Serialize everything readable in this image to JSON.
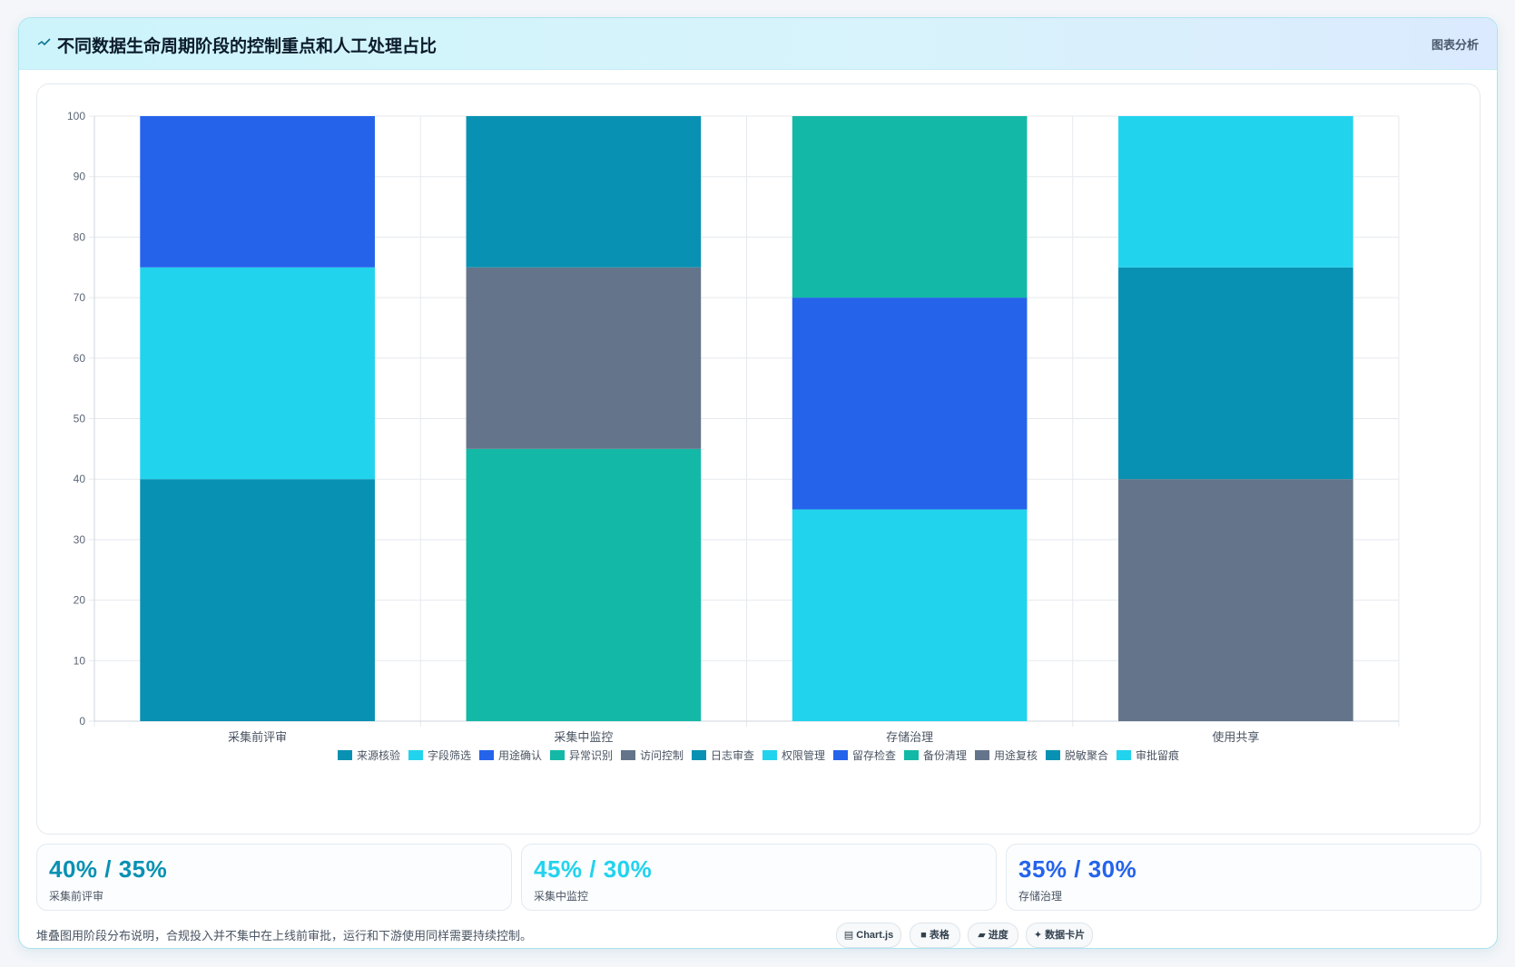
{
  "header": {
    "title": "不同数据生命周期阶段的控制重点和人工处理占比",
    "tag": "图表分析"
  },
  "chart_data": {
    "type": "bar",
    "stacked": true,
    "categories": [
      "采集前评审",
      "采集中监控",
      "存储治理",
      "使用共享"
    ],
    "ylim": [
      0,
      100
    ],
    "yticks": [
      0,
      10,
      20,
      30,
      40,
      50,
      60,
      70,
      80,
      90,
      100
    ],
    "grid": true,
    "legend_position": "bottom",
    "series": [
      {
        "name": "来源核验",
        "color": "#0891b2",
        "values": [
          40,
          0,
          0,
          0
        ]
      },
      {
        "name": "字段筛选",
        "color": "#22d3ee",
        "values": [
          35,
          0,
          0,
          0
        ]
      },
      {
        "name": "用途确认",
        "color": "#2563eb",
        "values": [
          25,
          0,
          0,
          0
        ]
      },
      {
        "name": "异常识别",
        "color": "#14b8a6",
        "values": [
          0,
          45,
          0,
          0
        ]
      },
      {
        "name": "访问控制",
        "color": "#64748b",
        "values": [
          0,
          30,
          0,
          0
        ]
      },
      {
        "name": "日志审查",
        "color": "#0891b2",
        "values": [
          0,
          25,
          0,
          0
        ]
      },
      {
        "name": "权限管理",
        "color": "#22d3ee",
        "values": [
          0,
          0,
          35,
          0
        ]
      },
      {
        "name": "留存检查",
        "color": "#2563eb",
        "values": [
          0,
          0,
          35,
          0
        ]
      },
      {
        "name": "备份清理",
        "color": "#14b8a6",
        "values": [
          0,
          0,
          30,
          0
        ]
      },
      {
        "name": "用途复核",
        "color": "#64748b",
        "values": [
          0,
          0,
          0,
          40
        ]
      },
      {
        "name": "脱敏聚合",
        "color": "#0891b2",
        "values": [
          0,
          0,
          0,
          35
        ]
      },
      {
        "name": "审批留痕",
        "color": "#22d3ee",
        "values": [
          0,
          0,
          0,
          25
        ]
      }
    ]
  },
  "stats": [
    {
      "value": "40% / 35%",
      "label": "采集前评审",
      "color": "#0891b2"
    },
    {
      "value": "45% / 30%",
      "label": "采集中监控",
      "color": "#22d3ee"
    },
    {
      "value": "35% / 30%",
      "label": "存储治理",
      "color": "#2563eb"
    }
  ],
  "footnote": "堆叠图用阶段分布说明，合规投入并不集中在上线前审批，运行和下游使用同样需要持续控制。",
  "chips": [
    {
      "icon": "▤",
      "label": "Chart.js"
    },
    {
      "icon": "■",
      "label": "表格"
    },
    {
      "icon": "▰",
      "label": "进度"
    },
    {
      "icon": "✦",
      "label": "数据卡片"
    }
  ]
}
